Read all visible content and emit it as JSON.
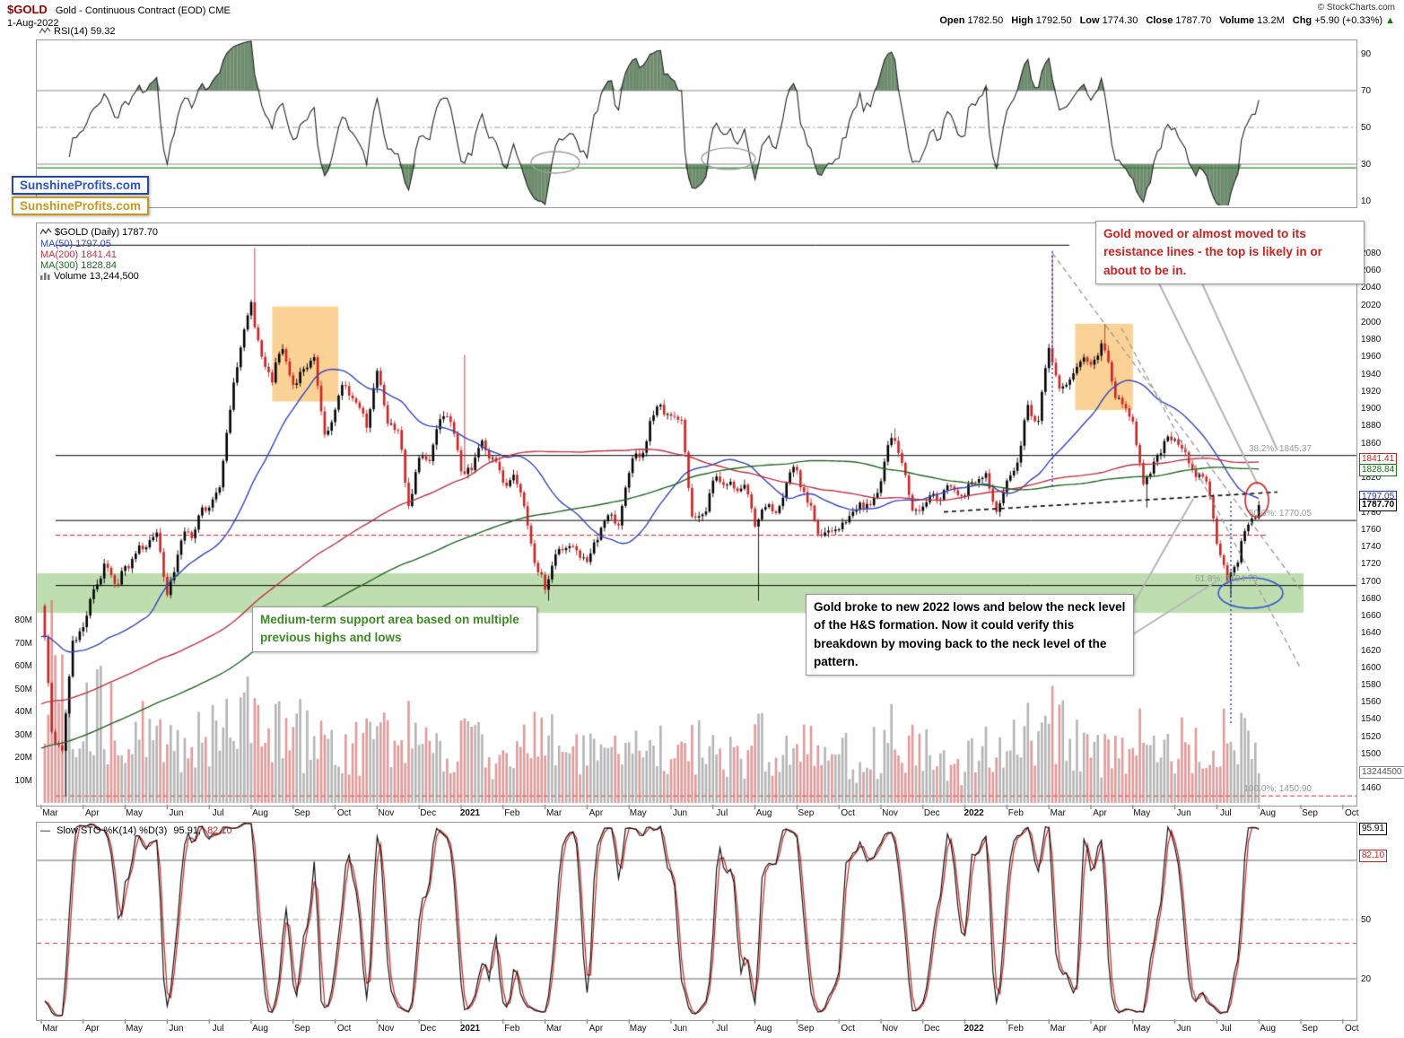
{
  "header": {
    "symbol": "$GOLD",
    "name": "Gold - Continuous Contract (EOD) CME",
    "date": "1-Aug-2022",
    "copyright": "© StockCharts.com",
    "quote": [
      {
        "label": "Open",
        "value": "1782.50"
      },
      {
        "label": "High",
        "value": "1792.50"
      },
      {
        "label": "Low",
        "value": "1774.30"
      },
      {
        "label": "Close",
        "value": "1787.70"
      },
      {
        "label": "Volume",
        "value": "13.2M"
      },
      {
        "label": "Chg",
        "value": "+5.90 (+0.33%)",
        "arrow": "▲"
      }
    ]
  },
  "watermark": {
    "line1": "SunshineProfits.com",
    "line2": "SunshineProfits.com"
  },
  "rsi_panel": {
    "legend": "RSI(14) 59.32",
    "axis_labels": [
      90,
      70,
      50,
      30,
      10
    ],
    "overbought": 70,
    "oversold": 30,
    "midline": 50,
    "support_line": 28
  },
  "main_panel": {
    "legend": {
      "symbol": "$GOLD (Daily) 1787.70",
      "ma50": "MA(50) 1797.05",
      "ma200": "MA(200) 1841.41",
      "ma300": "MA(300) 1828.84",
      "volume": "Volume 13,244,500"
    },
    "price_axis": {
      "max": 2080,
      "min": 1460,
      "step": 20
    },
    "volume_axis": [
      "80M",
      "70M",
      "60M",
      "50M",
      "40M",
      "30M",
      "20M",
      "10M"
    ],
    "fib_labels": [
      {
        "text": "38.2%: 1845.37",
        "price": 1845.37,
        "dx": 0
      },
      {
        "text": "50.0%: 1770.05",
        "price": 1770.05,
        "dx": 0
      },
      {
        "text": "61.8%: 1694.73",
        "price": 1694.73,
        "dx": -60
      },
      {
        "text": "100.0%: 1450.90",
        "price": 1450.9,
        "dx": 0
      }
    ],
    "price_callouts": [
      {
        "text": "1841.41",
        "price": 1841.41,
        "color": "#cc2222",
        "bold": false
      },
      {
        "text": "1828.84",
        "price": 1828.84,
        "color": "#117711",
        "bold": false
      },
      {
        "text": "1797.05",
        "price": 1797.05,
        "color": "#2233cc",
        "bold": false
      },
      {
        "text": "1787.70",
        "price": 1787.7,
        "color": "#000000",
        "bold": true
      }
    ],
    "volume_callout": {
      "text": "13244500",
      "value_m": 13.2
    }
  },
  "annotations": {
    "resistance_note": "Gold moved or almost moved to its resistance lines - the top is likely in or about to be in.",
    "support_note": "Medium-term support area based on multiple previous highs and lows",
    "breakdown_note": "Gold broke to new 2022 lows and below the neck level of the H&S formation. Now it could verify this breakdown by moving back to the neck level of the pattern."
  },
  "x_axis": {
    "labels": [
      "Mar",
      "Apr",
      "May",
      "Jun",
      "Jul",
      "Aug",
      "Sep",
      "Oct",
      "Nov",
      "Dec",
      "2021",
      "Feb",
      "Mar",
      "Apr",
      "May",
      "Jun",
      "Jul",
      "Aug",
      "Sep",
      "Oct",
      "Nov",
      "Dec",
      "2022",
      "Feb",
      "Mar",
      "Apr",
      "May",
      "Jun",
      "Jul",
      "Aug",
      "Sep",
      "Oct"
    ],
    "bold_labels": [
      "2021",
      "2022"
    ]
  },
  "stoch_panel": {
    "legend_prefix": "Slow STO %K(14) %D(3)",
    "k_text": "95.91,",
    "d_text": "82.10",
    "axis_labels": [
      50,
      20
    ],
    "callouts": [
      {
        "text": "95.91",
        "value": 95.91,
        "color": "#000000"
      },
      {
        "text": "82.10",
        "value": 82.1,
        "color": "#cc2222"
      }
    ],
    "levels": {
      "upper": 80,
      "mid": 50,
      "lower": 20,
      "red_dashed": 38
    }
  },
  "chart_data": {
    "type": "candlestick",
    "title": "$GOLD Gold - Continuous Contract (EOD) CME, Daily, with RSI(14), MA(50/200/300), Volume and Slow Stochastics",
    "x_range": [
      "Mar-2020",
      "Oct-2022"
    ],
    "last_date": "1-Aug-2022",
    "ohlc_last": {
      "open": 1782.5,
      "high": 1792.5,
      "low": 1774.3,
      "close": 1787.7
    },
    "price_ylim": [
      1440,
      2113
    ],
    "weeks_start": "Mar-2020",
    "price_weekly_close": [
      1674,
      1530,
      1498,
      1625,
      1645,
      1698,
      1711,
      1700,
      1708,
      1740,
      1735,
      1751,
      1683,
      1737,
      1753,
      1770,
      1790,
      1810,
      1897,
      1966,
      2028,
      1950,
      1940,
      1965,
      1934,
      1948,
      1950,
      1866,
      1900,
      1930,
      1905,
      1879,
      1951,
      1886,
      1870,
      1788,
      1840,
      1843,
      1881,
      1893,
      1835,
      1828,
      1856,
      1847,
      1814,
      1823,
      1784,
      1729,
      1700,
      1726,
      1745,
      1732,
      1728,
      1745,
      1777,
      1768,
      1832,
      1843,
      1881,
      1905,
      1892,
      1878,
      1769,
      1781,
      1810,
      1815,
      1802,
      1817,
      1763,
      1778,
      1781,
      1820,
      1828,
      1790,
      1754,
      1761,
      1757,
      1768,
      1793,
      1784,
      1817,
      1865,
      1846,
      1788,
      1783,
      1798,
      1804,
      1808,
      1797,
      1817,
      1832,
      1786,
      1808,
      1842,
      1898,
      1887,
      1966,
      1922,
      1942,
      1958,
      1946,
      1975,
      1934,
      1897,
      1883,
      1810,
      1842,
      1857,
      1872,
      1840,
      1827,
      1812,
      1742,
      1706,
      1727,
      1766,
      1788
    ],
    "volume_weekly_millions": [
      55,
      62,
      50,
      44,
      46,
      40,
      36,
      32,
      30,
      32,
      28,
      26,
      29,
      25,
      27,
      31,
      29,
      31,
      35,
      38,
      42,
      39,
      31,
      29,
      31,
      27,
      29,
      26,
      25,
      23,
      24,
      27,
      31,
      29,
      27,
      31,
      27,
      23,
      25,
      21,
      29,
      25,
      23,
      21,
      23,
      21,
      25,
      29,
      31,
      27,
      23,
      21,
      21,
      19,
      21,
      23,
      23,
      21,
      25,
      27,
      29,
      31,
      25,
      23,
      23,
      21,
      19,
      21,
      27,
      23,
      19,
      21,
      23,
      25,
      21,
      23,
      21,
      19,
      21,
      23,
      27,
      29,
      25,
      27,
      23,
      19,
      17,
      15,
      23,
      21,
      25,
      27,
      25,
      27,
      31,
      29,
      37,
      31,
      27,
      25,
      23,
      21,
      25,
      27,
      29,
      27,
      23,
      21,
      25,
      21,
      23,
      27,
      31,
      29,
      27,
      25,
      13
    ],
    "extremes": [
      {
        "week": 2,
        "low": 1451
      },
      {
        "week": 20,
        "high": 2086
      },
      {
        "week": 40,
        "high": 1962
      },
      {
        "week": 47,
        "low": 1717
      },
      {
        "week": 48,
        "low": 1677
      },
      {
        "week": 68,
        "low": 1677
      },
      {
        "week": 81,
        "high": 1877
      },
      {
        "week": 96,
        "high": 2078
      },
      {
        "week": 101,
        "high": 1998
      },
      {
        "week": 105,
        "low": 1785
      },
      {
        "week": 113,
        "low": 1681
      }
    ],
    "pre_trend": {
      "start": 1330,
      "end": 1660,
      "weeks": 64
    },
    "indicators": {
      "rsi14": 59.32,
      "ma50": 1797.05,
      "ma200": 1841.41,
      "ma300": 1828.84,
      "stoch_k": 95.91,
      "stoch_d": 82.1,
      "volume": 13244500
    },
    "fib_levels": {
      "p000": 2089,
      "p382": 1845.37,
      "p500": 1770.05,
      "p618": 1694.73,
      "p1000": 1450.9
    },
    "support_band": [
      1663,
      1709
    ],
    "red_support_line": 1753,
    "highlight_boxes": [
      {
        "label": "aug-sep-2020-consolidation",
        "week_from": 22,
        "week_to": 28.3,
        "price_from": 1908,
        "price_to": 2018
      },
      {
        "label": "mar-apr-2022-consolidation",
        "week_from": 98.5,
        "week_to": 104,
        "price_from": 1898,
        "price_to": 1998
      }
    ],
    "colors": {
      "up": "#000000",
      "down": "#cc2222",
      "ma50": "#3344bb",
      "ma200": "#bb3344",
      "ma300": "#226622",
      "band": "rgba(139,195,109,0.55)",
      "highlight": "rgba(247,166,45,0.5)",
      "volume_up": "rgba(150,150,150,0.7)",
      "volume_down": "rgba(214,120,120,0.75)"
    }
  }
}
